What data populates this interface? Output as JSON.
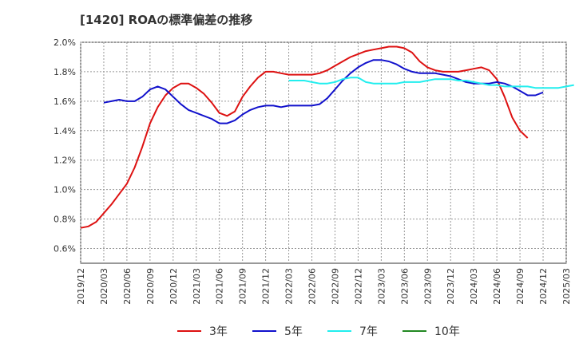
{
  "chart_data": {
    "type": "line",
    "title": "[1420]  ROAの標準偏差の推移",
    "xlabel": "",
    "ylabel": "",
    "ylim": [
      0.5,
      2.0
    ],
    "y_ticks": [
      "2.0%",
      "1.8%",
      "1.6%",
      "1.4%",
      "1.2%",
      "1.0%",
      "0.8%",
      "0.6%"
    ],
    "y_tick_values": [
      2.0,
      1.8,
      1.6,
      1.4,
      1.2,
      1.0,
      0.8,
      0.6
    ],
    "x_ticks": [
      "2019/12",
      "2020/03",
      "2020/06",
      "2020/09",
      "2020/12",
      "2021/03",
      "2021/06",
      "2021/09",
      "2021/12",
      "2022/03",
      "2022/06",
      "2022/09",
      "2022/12",
      "2023/03",
      "2023/06",
      "2023/09",
      "2023/12",
      "2024/03",
      "2024/06",
      "2024/09",
      "2024/12",
      "2025/03"
    ],
    "x_start": "2019/12",
    "grid": true,
    "legend_position": "bottom",
    "series": [
      {
        "name": "3年",
        "color": "#dd1111",
        "start_index": 0,
        "values": [
          0.74,
          0.75,
          0.78,
          0.84,
          0.9,
          0.97,
          1.04,
          1.15,
          1.29,
          1.45,
          1.56,
          1.64,
          1.69,
          1.72,
          1.72,
          1.69,
          1.65,
          1.59,
          1.52,
          1.5,
          1.53,
          1.63,
          1.7,
          1.76,
          1.8,
          1.8,
          1.79,
          1.78,
          1.78,
          1.78,
          1.78,
          1.79,
          1.81,
          1.84,
          1.87,
          1.9,
          1.92,
          1.94,
          1.95,
          1.96,
          1.97,
          1.97,
          1.96,
          1.93,
          1.87,
          1.83,
          1.81,
          1.8,
          1.8,
          1.8,
          1.81,
          1.82,
          1.83,
          1.81,
          1.75,
          1.63,
          1.49,
          1.4,
          1.35
        ]
      },
      {
        "name": "5年",
        "color": "#1111cc",
        "start_index": 3,
        "values": [
          1.59,
          1.6,
          1.61,
          1.6,
          1.6,
          1.63,
          1.68,
          1.7,
          1.68,
          1.63,
          1.58,
          1.54,
          1.52,
          1.5,
          1.48,
          1.45,
          1.45,
          1.47,
          1.51,
          1.54,
          1.56,
          1.57,
          1.57,
          1.56,
          1.57,
          1.57,
          1.57,
          1.57,
          1.58,
          1.62,
          1.68,
          1.74,
          1.79,
          1.83,
          1.86,
          1.88,
          1.88,
          1.87,
          1.85,
          1.82,
          1.8,
          1.79,
          1.79,
          1.79,
          1.78,
          1.77,
          1.75,
          1.73,
          1.72,
          1.72,
          1.72,
          1.73,
          1.72,
          1.7,
          1.67,
          1.64,
          1.64,
          1.66
        ]
      },
      {
        "name": "7年",
        "color": "#22eeee",
        "start_index": 27,
        "values": [
          1.74,
          1.74,
          1.74,
          1.73,
          1.72,
          1.72,
          1.73,
          1.75,
          1.76,
          1.76,
          1.73,
          1.72,
          1.72,
          1.72,
          1.72,
          1.73,
          1.73,
          1.73,
          1.74,
          1.75,
          1.75,
          1.75,
          1.74,
          1.74,
          1.73,
          1.72,
          1.71,
          1.71,
          1.7,
          1.7,
          1.7,
          1.7,
          1.69,
          1.69,
          1.69,
          1.69,
          1.7,
          1.71
        ]
      },
      {
        "name": "10年",
        "color": "#228822",
        "start_index": 0,
        "values": []
      }
    ]
  }
}
